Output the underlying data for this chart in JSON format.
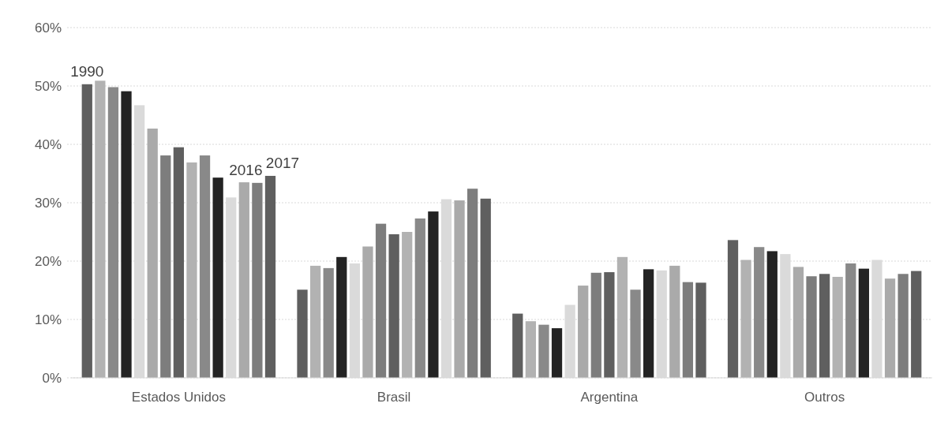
{
  "chart_data": {
    "type": "bar",
    "categories": [
      "Estados Unidos",
      "Brasil",
      "Argentina",
      "Outros"
    ],
    "ylim": [
      0,
      60
    ],
    "yticks": [
      {
        "value": 0,
        "label": "0%"
      },
      {
        "value": 10,
        "label": "10%"
      },
      {
        "value": 20,
        "label": "20%"
      },
      {
        "value": 30,
        "label": "30%"
      },
      {
        "value": 40,
        "label": "40%"
      },
      {
        "value": 50,
        "label": "50%"
      },
      {
        "value": 60,
        "label": "60%"
      }
    ],
    "grid": "y",
    "series": [
      {
        "name": "1990",
        "color": "#5f5f5f",
        "values": [
          50.3,
          15.1,
          11.0,
          23.6
        ]
      },
      {
        "color": "#b2b2b2",
        "values": [
          50.9,
          19.2,
          9.7,
          20.2
        ]
      },
      {
        "color": "#898989",
        "values": [
          49.8,
          18.8,
          9.1,
          22.4
        ]
      },
      {
        "color": "#232323",
        "values": [
          49.1,
          20.7,
          8.5,
          21.7
        ]
      },
      {
        "color": "#dadada",
        "values": [
          46.7,
          19.6,
          12.5,
          21.2
        ]
      },
      {
        "color": "#aaaaaa",
        "values": [
          42.7,
          22.5,
          15.8,
          19.0
        ]
      },
      {
        "color": "#7d7d7d",
        "values": [
          38.1,
          26.4,
          18.0,
          17.4
        ]
      },
      {
        "color": "#5f5f5f",
        "values": [
          39.5,
          24.6,
          18.1,
          17.8
        ]
      },
      {
        "color": "#b2b2b2",
        "values": [
          36.9,
          25.0,
          20.7,
          17.3
        ]
      },
      {
        "color": "#898989",
        "values": [
          38.1,
          27.3,
          15.1,
          19.6
        ]
      },
      {
        "color": "#232323",
        "values": [
          34.3,
          28.5,
          18.6,
          18.7
        ]
      },
      {
        "color": "#dadada",
        "values": [
          30.9,
          30.6,
          18.4,
          20.2
        ]
      },
      {
        "color": "#aaaaaa",
        "values": [
          33.5,
          30.4,
          19.2,
          17.0
        ]
      },
      {
        "name": "2016",
        "color": "#7d7d7d",
        "values": [
          33.4,
          32.4,
          16.4,
          17.8
        ]
      },
      {
        "name": "2017",
        "color": "#5f5f5f",
        "values": [
          34.6,
          30.7,
          16.3,
          18.3
        ]
      }
    ]
  }
}
